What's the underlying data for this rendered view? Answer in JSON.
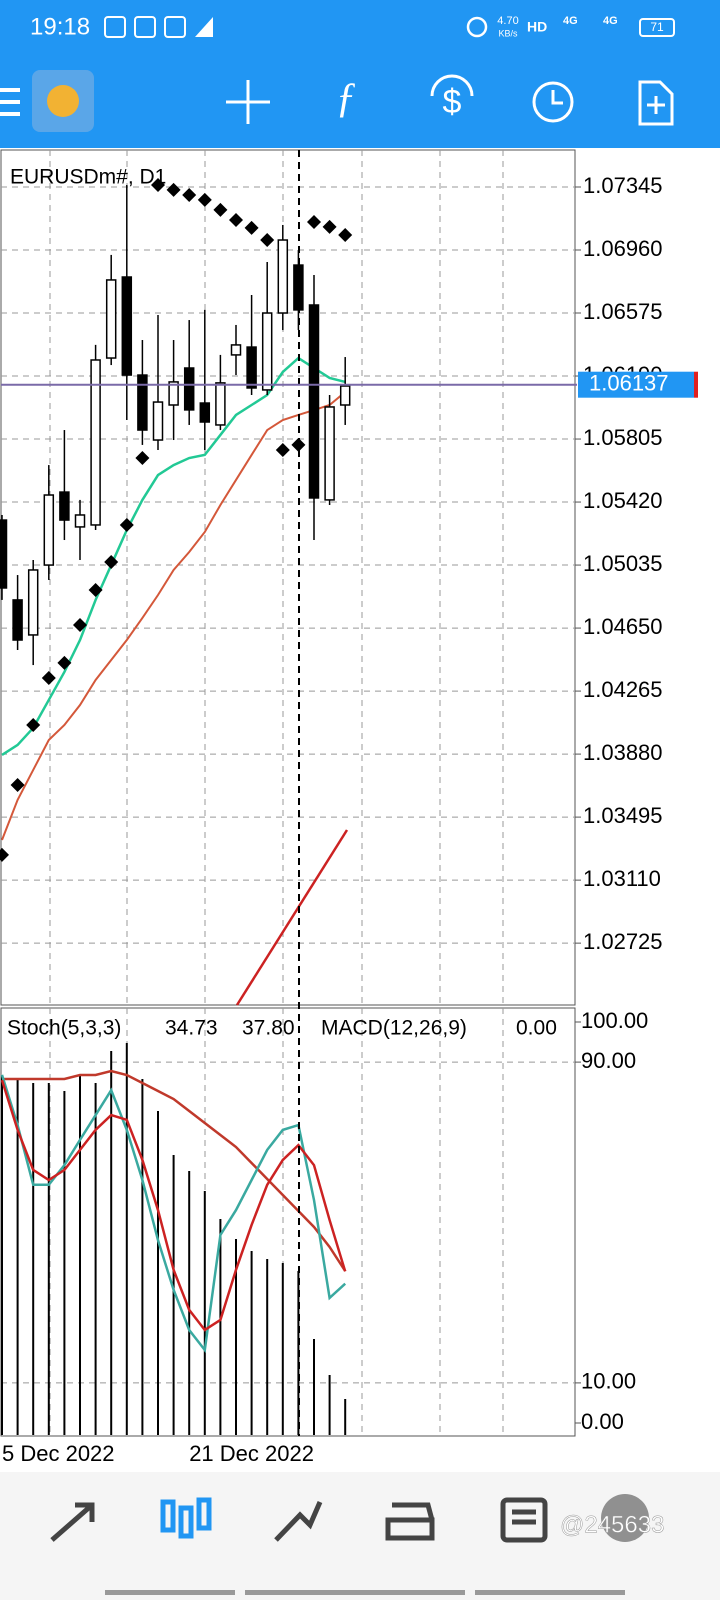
{
  "status_bar": {
    "time": "19:18",
    "net_speed": "4.70",
    "net_unit": "KB/s",
    "hd": "HD",
    "signal_1": "4G",
    "signal_2": "4G",
    "battery": "71"
  },
  "watermark": "@245633",
  "chart_data": [
    {
      "type": "candlestick",
      "title": "EURUSDm#, D1",
      "categories": [
        "5 Dec 2022",
        null,
        null,
        null,
        null,
        null,
        null,
        null,
        null,
        null,
        null,
        null,
        "21 Dec 2022",
        null,
        null,
        null,
        null,
        null,
        null,
        null,
        null,
        null,
        null
      ],
      "open": [
        1.0531,
        1.04822,
        1.04608,
        1.05035,
        1.05481,
        1.05268,
        1.0528,
        1.063,
        1.06795,
        1.06196,
        1.05799,
        1.06013,
        1.06239,
        1.06025,
        1.05891,
        1.06319,
        1.06367,
        1.06105,
        1.06575,
        1.06868,
        1.06624,
        1.05433,
        1.06013
      ],
      "high": [
        1.05341,
        1.04974,
        1.05066,
        1.05646,
        1.0586,
        1.05433,
        1.0638,
        1.0693,
        1.07357,
        1.0641,
        1.06563,
        1.0641,
        1.06532,
        1.06594,
        1.06319,
        1.06502,
        1.06685,
        1.06887,
        1.07113,
        1.0696,
        1.06807,
        1.06074,
        1.06306
      ],
      "low": [
        1.04822,
        1.04516,
        1.04424,
        1.04944,
        1.05188,
        1.05066,
        1.05249,
        1.06257,
        1.05921,
        1.05769,
        1.05738,
        1.05799,
        1.05891,
        1.05738,
        1.0586,
        1.06196,
        1.06074,
        1.06074,
        1.06471,
        1.06471,
        1.05188,
        1.05402,
        1.05891
      ],
      "close": [
        1.04895,
        1.04577,
        1.05005,
        1.05463,
        1.0531,
        1.05341,
        1.06288,
        1.06777,
        1.06196,
        1.0586,
        1.06031,
        1.06154,
        1.05983,
        1.05909,
        1.06148,
        1.0638,
        1.06117,
        1.06575,
        1.07021,
        1.06594,
        1.05445,
        1.06001,
        1.06129
      ],
      "up_color": "#ffffff",
      "down_color": "#000000",
      "ma_fast": {
        "color": "#22c995",
        "values": [
          1.03875,
          1.03936,
          1.0404,
          1.04211,
          1.04382,
          1.04577,
          1.04822,
          1.05035,
          1.05249,
          1.05433,
          1.05585,
          1.05646,
          1.05689,
          1.05708,
          1.0583,
          1.05952,
          1.06013,
          1.06074,
          1.06215,
          1.063,
          1.06239,
          1.06178,
          1.06154
        ]
      },
      "ma_slow": {
        "color": "#d4583a",
        "values": [
          1.03355,
          1.036,
          1.03783,
          1.03966,
          1.04058,
          1.0418,
          1.04333,
          1.04455,
          1.04577,
          1.04712,
          1.04852,
          1.05005,
          1.05115,
          1.05237,
          1.05402,
          1.05555,
          1.05708,
          1.0586,
          1.05921,
          1.05952,
          1.05982,
          1.06013,
          1.06092
        ]
      },
      "sar": {
        "color": "#000000",
        "values": [
          1.03264,
          1.03691,
          1.04058,
          1.04345,
          1.04437,
          1.04669,
          1.04883,
          1.05054,
          1.0528,
          1.05689,
          1.07357,
          1.07327,
          1.07296,
          1.07266,
          1.07205,
          1.07143,
          1.07095,
          1.07021,
          1.05738,
          1.05769,
          1.07131,
          1.07101,
          1.07052
        ]
      },
      "bid": 1.06137,
      "bid_color": "#7a6aa8",
      "ylim": [
        1.02347,
        1.07571
      ],
      "yticks": [
        1.07345,
        {
          "value": 1.0696,
          "label": "1.06960"
        },
        1.06575,
        {
          "value": 1.0619,
          "label": "1.06190"
        },
        1.05805,
        {
          "value": 1.0542,
          "label": "1.05420"
        },
        1.05035,
        {
          "value": 1.0465,
          "label": "1.04650"
        },
        1.04265,
        {
          "value": 1.0388,
          "label": "1.03880"
        },
        1.03495,
        {
          "value": 1.0311,
          "label": "1.03110"
        },
        1.02725
      ],
      "grid": true
    },
    {
      "type": "oscillator",
      "title": "Stoch(5,3,3)",
      "main_label": "34.73",
      "signal_label": "37.80",
      "macd_title": "MACD(12,26,9)",
      "macd_label": "0.00",
      "stoch_main": {
        "color": "#3aa9a0",
        "values": [
          86.8,
          74.3,
          59.4,
          59.4,
          64.3,
          70.6,
          76.8,
          83.0,
          73.1,
          60.6,
          45.6,
          33.2,
          23.2,
          18.2,
          46.9,
          53.1,
          60.6,
          68.1,
          73.1,
          74.3,
          55.6,
          31.2,
          34.73
        ]
      },
      "stoch_signal": {
        "color": "#cc2222",
        "values": [
          85.5,
          73.1,
          63.1,
          60.6,
          63.1,
          68.1,
          73.1,
          76.8,
          75.6,
          65.6,
          53.1,
          38.2,
          28.2,
          23.2,
          25.7,
          38.2,
          49.4,
          59.4,
          65.6,
          69.3,
          64.3,
          50.6,
          37.8
        ]
      },
      "macd_hist": {
        "color": "#000000",
        "axis": "y2",
        "values": [
          0.009,
          0.0089,
          0.0088,
          0.0088,
          0.0086,
          0.009,
          0.0088,
          0.0096,
          0.0098,
          0.0089,
          0.0081,
          0.007,
          0.0066,
          0.0061,
          0.0054,
          0.0049,
          0.0046,
          0.0044,
          0.0043,
          0.0041,
          0.0024,
          0.0015,
          0.0009
        ]
      },
      "macd_signal": {
        "color": "#c0392b",
        "axis": "y2",
        "values": [
          0.0089,
          0.0089,
          0.0089,
          0.0089,
          0.0089,
          0.009,
          0.009,
          0.0091,
          0.009,
          0.0088,
          0.0086,
          0.0084,
          0.0081,
          0.0078,
          0.0075,
          0.0072,
          0.0068,
          0.0064,
          0.006,
          0.0056,
          0.0052,
          0.0047,
          0.0041
        ]
      },
      "ylim": [
        0,
        100
      ],
      "yticks": [
        {
          "value": 100,
          "label": "100.00"
        },
        {
          "value": 90,
          "label": "90.00"
        },
        {
          "value": 10,
          "label": "10.00"
        },
        {
          "value": 0,
          "label": "0.00"
        }
      ],
      "y2lim": [
        0,
        0.01
      ]
    }
  ]
}
